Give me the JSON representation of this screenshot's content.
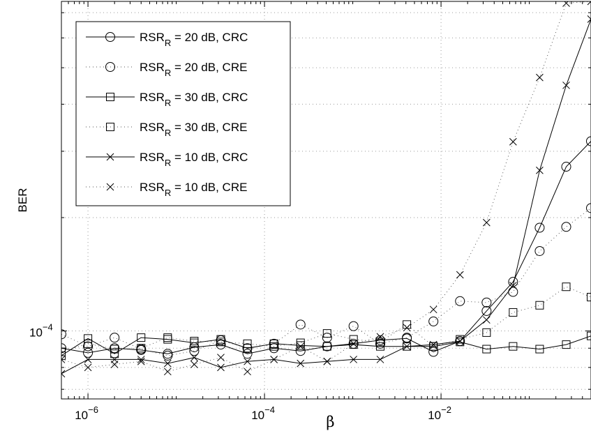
{
  "chart_data": {
    "type": "line",
    "title": "",
    "xlabel": "β",
    "ylabel": "BER",
    "xscale": "log",
    "yscale": "log",
    "xlim": [
      5e-07,
      0.5
    ],
    "ylim": [
      6.6e-05,
      0.00075
    ],
    "grid": true,
    "legend_position": "top-left",
    "x_ticks": [
      {
        "value": 1e-06,
        "base": "10",
        "exp": "−6"
      },
      {
        "value": 0.0001,
        "base": "10",
        "exp": "−4"
      },
      {
        "value": 0.01,
        "base": "10",
        "exp": "−2"
      }
    ],
    "y_ticks": [
      {
        "value": 0.0001,
        "base": "10",
        "exp": "−4"
      }
    ],
    "series": [
      {
        "name_prefix": "RSR",
        "name_sub": "R",
        "name_suffix": " = 20 dB, CRC",
        "line": "solid",
        "marker": "circle",
        "x": [
          5e-07,
          1e-06,
          2e-06,
          4e-06,
          8e-06,
          1.6e-05,
          3.2e-05,
          6.4e-05,
          0.000128,
          0.000256,
          0.000512,
          0.00102,
          0.00205,
          0.0041,
          0.0082,
          0.0164,
          0.0328,
          0.0655,
          0.131,
          0.262,
          0.5
        ],
        "y": [
          9e-05,
          8.75e-05,
          9e-05,
          8.9e-05,
          8.7e-05,
          9.05e-05,
          9.2e-05,
          8.7e-05,
          9e-05,
          8.85e-05,
          9.1e-05,
          9.25e-05,
          9.45e-05,
          9.55e-05,
          8.8e-05,
          9.4e-05,
          0.000113,
          0.000135,
          0.000188,
          0.000273,
          0.000319
        ]
      },
      {
        "name_prefix": "RSR",
        "name_sub": "R",
        "name_suffix": " = 20 dB, CRE",
        "line": "dotted",
        "marker": "circle",
        "x": [
          5e-07,
          1e-06,
          2e-06,
          4e-06,
          8e-06,
          1.6e-05,
          3.2e-05,
          6.4e-05,
          0.000128,
          0.000256,
          0.000512,
          0.00102,
          0.00205,
          0.0041,
          0.0082,
          0.0164,
          0.0328,
          0.0655,
          0.131,
          0.262,
          0.5
        ],
        "y": [
          9.8e-05,
          9.1e-05,
          9.6e-05,
          8.95e-05,
          8.6e-05,
          8.85e-05,
          9.45e-05,
          9e-05,
          9.25e-05,
          0.000104,
          9.6e-05,
          0.000103,
          9.25e-05,
          9.6e-05,
          0.000106,
          0.00012,
          0.000119,
          0.000127,
          0.000163,
          0.000189,
          0.000212
        ]
      },
      {
        "name_prefix": "RSR",
        "name_sub": "R",
        "name_suffix": " = 30 dB, CRC",
        "line": "solid",
        "marker": "square",
        "x": [
          5e-07,
          1e-06,
          2e-06,
          4e-06,
          8e-06,
          1.6e-05,
          3.2e-05,
          6.4e-05,
          0.000128,
          0.000256,
          0.000512,
          0.00102,
          0.00205,
          0.0041,
          0.0082,
          0.0164,
          0.0328,
          0.0655,
          0.131,
          0.262,
          0.5
        ],
        "y": [
          8.6e-05,
          9.55e-05,
          8.7e-05,
          9.6e-05,
          9.5e-05,
          9.3e-05,
          9.5e-05,
          9e-05,
          9.25e-05,
          9.15e-05,
          9.1e-05,
          9.2e-05,
          9.1e-05,
          9.1e-05,
          9.1e-05,
          9.35e-05,
          8.95e-05,
          9.1e-05,
          8.95e-05,
          9.2e-05,
          9.7e-05
        ]
      },
      {
        "name_prefix": "RSR",
        "name_sub": "R",
        "name_suffix": " = 30 dB, CRE",
        "line": "dotted",
        "marker": "square",
        "x": [
          5e-07,
          1e-06,
          2e-06,
          4e-06,
          8e-06,
          1.6e-05,
          3.2e-05,
          6.4e-05,
          0.000128,
          0.000256,
          0.000512,
          0.00102,
          0.00205,
          0.0041,
          0.0082,
          0.0164,
          0.0328,
          0.0655,
          0.131,
          0.262,
          0.5
        ],
        "y": [
          8.8e-05,
          9.25e-05,
          8.95e-05,
          9e-05,
          9.6e-05,
          9.4e-05,
          9.35e-05,
          9.25e-05,
          9.1e-05,
          9.3e-05,
          9.85e-05,
          9.5e-05,
          9.35e-05,
          0.000104,
          9.1e-05,
          9.5e-05,
          9.9e-05,
          0.000112,
          0.000117,
          0.000131,
          0.000123
        ]
      },
      {
        "name_prefix": "RSR",
        "name_sub": "R",
        "name_suffix": " = 10 dB, CRC",
        "line": "solid",
        "marker": "x",
        "x": [
          5e-07,
          1e-06,
          2e-06,
          4e-06,
          8e-06,
          1.6e-05,
          3.2e-05,
          6.4e-05,
          0.000128,
          0.000256,
          0.000512,
          0.00102,
          0.00205,
          0.0041,
          0.0082,
          0.0164,
          0.0328,
          0.0655,
          0.131,
          0.262,
          0.5
        ],
        "y": [
          7.7e-05,
          8.4e-05,
          8.4e-05,
          8.4e-05,
          8.2e-05,
          8.5e-05,
          8e-05,
          8.3e-05,
          8.4e-05,
          8.2e-05,
          8.3e-05,
          8.4e-05,
          8.4e-05,
          9.1e-05,
          9.2e-05,
          9.4e-05,
          0.000107,
          0.000132,
          0.000267,
          0.000449,
          0.000673
        ]
      },
      {
        "name_prefix": "RSR",
        "name_sub": "R",
        "name_suffix": " = 10 dB, CRE",
        "line": "dotted",
        "marker": "x",
        "x": [
          5e-07,
          1e-06,
          2e-06,
          4e-06,
          8e-06,
          1.6e-05,
          3.2e-05,
          6.4e-05,
          0.000128,
          0.000256,
          0.000512,
          0.00102,
          0.00205,
          0.0041,
          0.0082,
          0.0164,
          0.0328,
          0.0655,
          0.131,
          0.262,
          0.5
        ],
        "y": [
          8.4e-05,
          8e-05,
          8.15e-05,
          8.3e-05,
          7.8e-05,
          8.15e-05,
          8.5e-05,
          7.8e-05,
          8.4e-05,
          9.1e-05,
          8.3e-05,
          9.25e-05,
          9.65e-05,
          0.000102,
          0.000114,
          0.000141,
          0.000194,
          0.000318,
          0.000471,
          0.000742,
          0.00075
        ]
      }
    ]
  }
}
